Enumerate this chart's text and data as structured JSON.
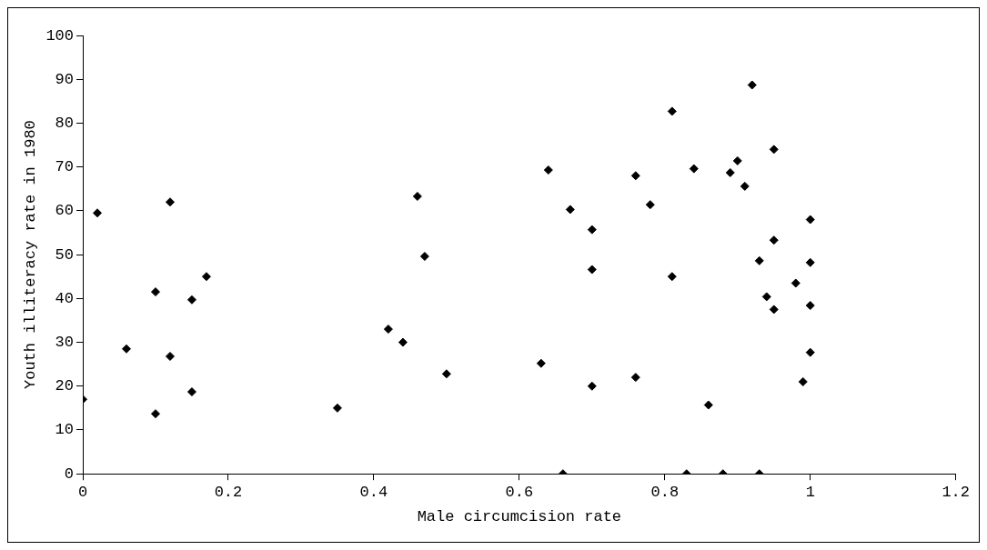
{
  "chart_data": {
    "type": "scatter",
    "xlabel": "Male circumcision rate",
    "ylabel": "Youth illiteracy rate in 1980",
    "x": [
      0,
      0.02,
      0.06,
      0.1,
      0.1,
      0.12,
      0.12,
      0.15,
      0.15,
      0.17,
      0.35,
      0.42,
      0.44,
      0.46,
      0.47,
      0.5,
      0.63,
      0.64,
      0.66,
      0.67,
      0.7,
      0.7,
      0.7,
      0.76,
      0.76,
      0.78,
      0.81,
      0.81,
      0.83,
      0.84,
      0.86,
      0.88,
      0.89,
      0.9,
      0.91,
      0.92,
      0.93,
      0.93,
      0.94,
      0.95,
      0.95,
      0.95,
      0.98,
      0.99,
      1,
      1,
      1,
      1
    ],
    "values": [
      17,
      59.5,
      28.5,
      41.5,
      13.7,
      62,
      26.8,
      39.7,
      18.7,
      45,
      15,
      33,
      30,
      63.3,
      49.6,
      22.8,
      25.2,
      69.3,
      0,
      60.3,
      55.7,
      46.6,
      20,
      68,
      22,
      61.4,
      82.7,
      45,
      0,
      69.6,
      15.7,
      0,
      68.7,
      71.4,
      65.6,
      88.7,
      48.6,
      0,
      40.4,
      74,
      53.3,
      37.5,
      43.5,
      21,
      58,
      48.2,
      38.4,
      27.7
    ],
    "color": "#000000",
    "marker": "diamond",
    "xlim": [
      0,
      1.2
    ],
    "xticks": [
      0,
      0.2,
      0.4,
      0.6,
      0.8,
      1,
      1.2
    ],
    "ylim": [
      0,
      100
    ],
    "yticks": [
      0,
      10,
      20,
      30,
      40,
      50,
      60,
      70,
      80,
      90,
      100
    ],
    "grid": false,
    "legend": false
  }
}
